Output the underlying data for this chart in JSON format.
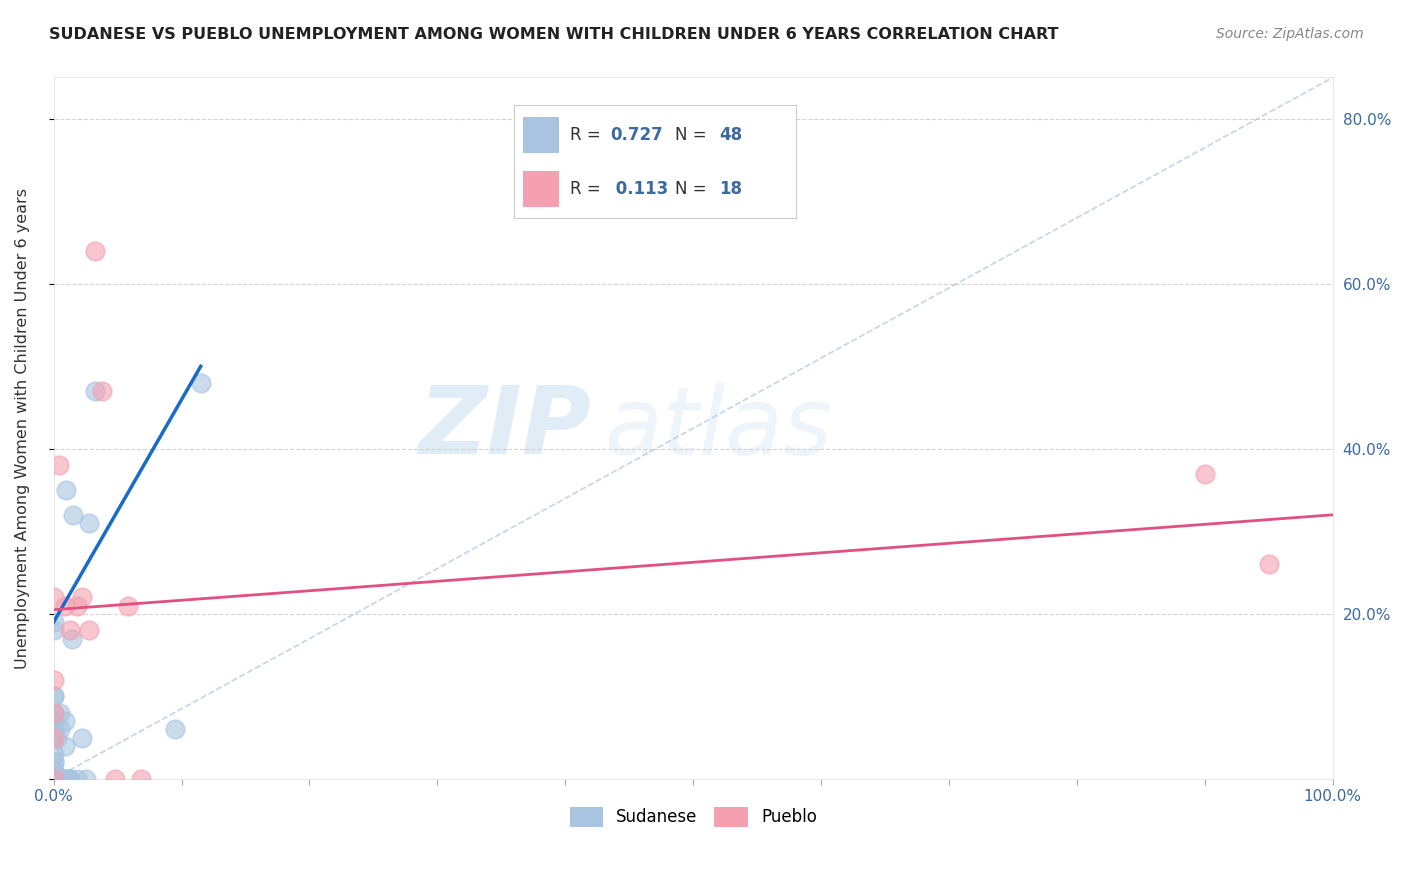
{
  "title": "SUDANESE VS PUEBLO UNEMPLOYMENT AMONG WOMEN WITH CHILDREN UNDER 6 YEARS CORRELATION CHART",
  "source": "Source: ZipAtlas.com",
  "ylabel": "Unemployment Among Women with Children Under 6 years",
  "xlim": [
    0,
    1.0
  ],
  "ylim": [
    0,
    0.85
  ],
  "xticks": [
    0.0,
    0.1,
    0.2,
    0.3,
    0.4,
    0.5,
    0.6,
    0.7,
    0.8,
    0.9,
    1.0
  ],
  "xticklabels": [
    "0.0%",
    "",
    "",
    "",
    "",
    "",
    "",
    "",
    "",
    "",
    "100.0%"
  ],
  "yticks": [
    0.0,
    0.2,
    0.4,
    0.6,
    0.8
  ],
  "yticklabels": [
    "",
    "20.0%",
    "40.0%",
    "60.0%",
    "80.0%"
  ],
  "sudanese_color": "#a8c4e0",
  "pueblo_color": "#f4a0b0",
  "line1_color": "#1a6ac7",
  "line2_color": "#e05080",
  "sudanese_x": [
    0.0,
    0.0,
    0.0,
    0.0,
    0.0,
    0.0,
    0.0,
    0.0,
    0.0,
    0.0,
    0.0,
    0.0,
    0.0,
    0.0,
    0.0,
    0.0,
    0.0,
    0.0,
    0.0,
    0.0,
    0.0,
    0.0,
    0.0,
    0.0,
    0.003,
    0.003,
    0.004,
    0.005,
    0.005,
    0.006,
    0.007,
    0.008,
    0.009,
    0.009,
    0.01,
    0.01,
    0.011,
    0.012,
    0.013,
    0.014,
    0.015,
    0.018,
    0.022,
    0.025,
    0.028,
    0.032,
    0.095,
    0.115
  ],
  "sudanese_y": [
    0.0,
    0.0,
    0.0,
    0.0,
    0.0,
    0.0,
    0.0,
    0.0,
    0.0,
    0.0,
    0.01,
    0.01,
    0.02,
    0.02,
    0.03,
    0.05,
    0.06,
    0.07,
    0.07,
    0.08,
    0.1,
    0.1,
    0.18,
    0.19,
    0.0,
    0.05,
    0.0,
    0.06,
    0.08,
    0.0,
    0.0,
    0.0,
    0.04,
    0.07,
    0.0,
    0.35,
    0.0,
    0.0,
    0.0,
    0.17,
    0.32,
    0.0,
    0.05,
    0.0,
    0.31,
    0.47,
    0.06,
    0.48
  ],
  "pueblo_x": [
    0.0,
    0.0,
    0.0,
    0.0,
    0.0,
    0.004,
    0.009,
    0.013,
    0.018,
    0.022,
    0.028,
    0.032,
    0.038,
    0.048,
    0.058,
    0.068,
    0.9,
    0.95
  ],
  "pueblo_y": [
    0.0,
    0.05,
    0.08,
    0.12,
    0.22,
    0.38,
    0.21,
    0.18,
    0.21,
    0.22,
    0.18,
    0.64,
    0.47,
    0.0,
    0.21,
    0.0,
    0.37,
    0.26
  ],
  "sudanese_trendline_x": [
    0.0,
    0.115
  ],
  "sudanese_trendline_y": [
    0.19,
    0.5
  ],
  "pueblo_trendline_x": [
    0.0,
    1.0
  ],
  "pueblo_trendline_y": [
    0.205,
    0.32
  ],
  "dashed_line_x": [
    0.0,
    1.0
  ],
  "dashed_line_y": [
    0.0,
    0.85
  ],
  "background_color": "#ffffff",
  "grid_color": "#d0d0d0"
}
